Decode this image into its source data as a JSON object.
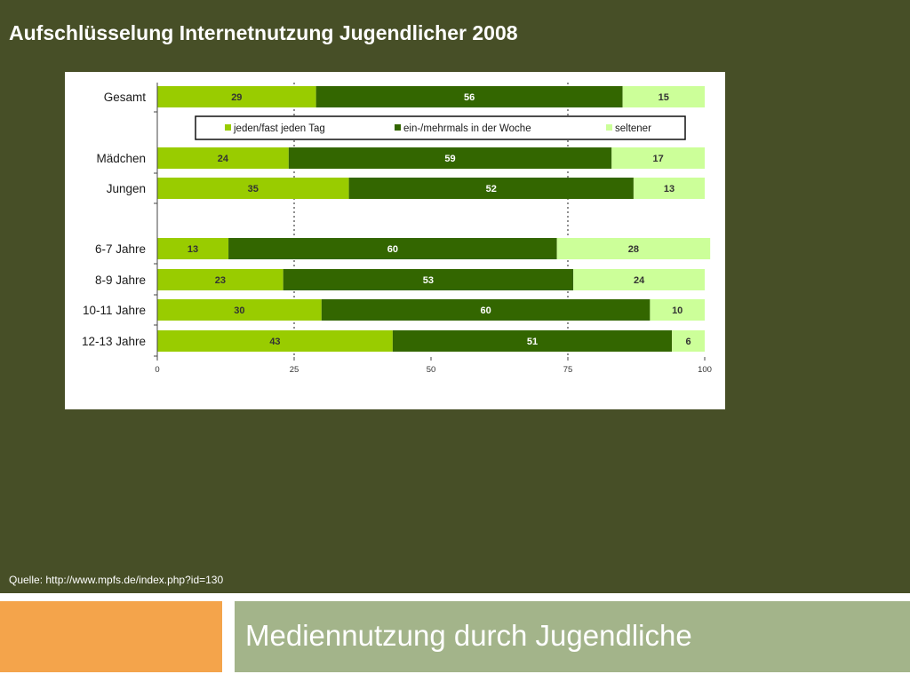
{
  "slide": {
    "title": "Aufschlüsselung Internetnutzung Jugendlicher 2008",
    "source": "Quelle: http://www.mpfs.de/index.php?id=130",
    "footer_title": "Mediennutzung durch Jugendliche"
  },
  "colors": {
    "background": "#474f27",
    "daily": "#99cc00",
    "weekly": "#336600",
    "rarely": "#ccff99",
    "footer_orange": "#f4a44b",
    "footer_green": "#a3b48a"
  },
  "chart_data": {
    "type": "bar",
    "orientation": "horizontal",
    "stacked": true,
    "categories": [
      "Gesamt",
      "Mädchen",
      "Jungen",
      "6-7 Jahre",
      "8-9 Jahre",
      "10-11 Jahre",
      "12-13 Jahre"
    ],
    "series": [
      {
        "name": "jeden/fast jeden Tag",
        "color": "#99cc00",
        "values": [
          29,
          24,
          35,
          13,
          23,
          30,
          43
        ]
      },
      {
        "name": "ein-/mehrmals in der Woche",
        "color": "#336600",
        "values": [
          56,
          59,
          52,
          60,
          53,
          60,
          51
        ]
      },
      {
        "name": "seltener",
        "color": "#ccff99",
        "values": [
          15,
          17,
          13,
          28,
          24,
          10,
          6
        ]
      }
    ],
    "xlim": [
      0,
      100
    ],
    "xticks": [
      0,
      25,
      50,
      75,
      100
    ],
    "legend": "top",
    "grid": "dotted vertical lines at 25 and 75"
  }
}
